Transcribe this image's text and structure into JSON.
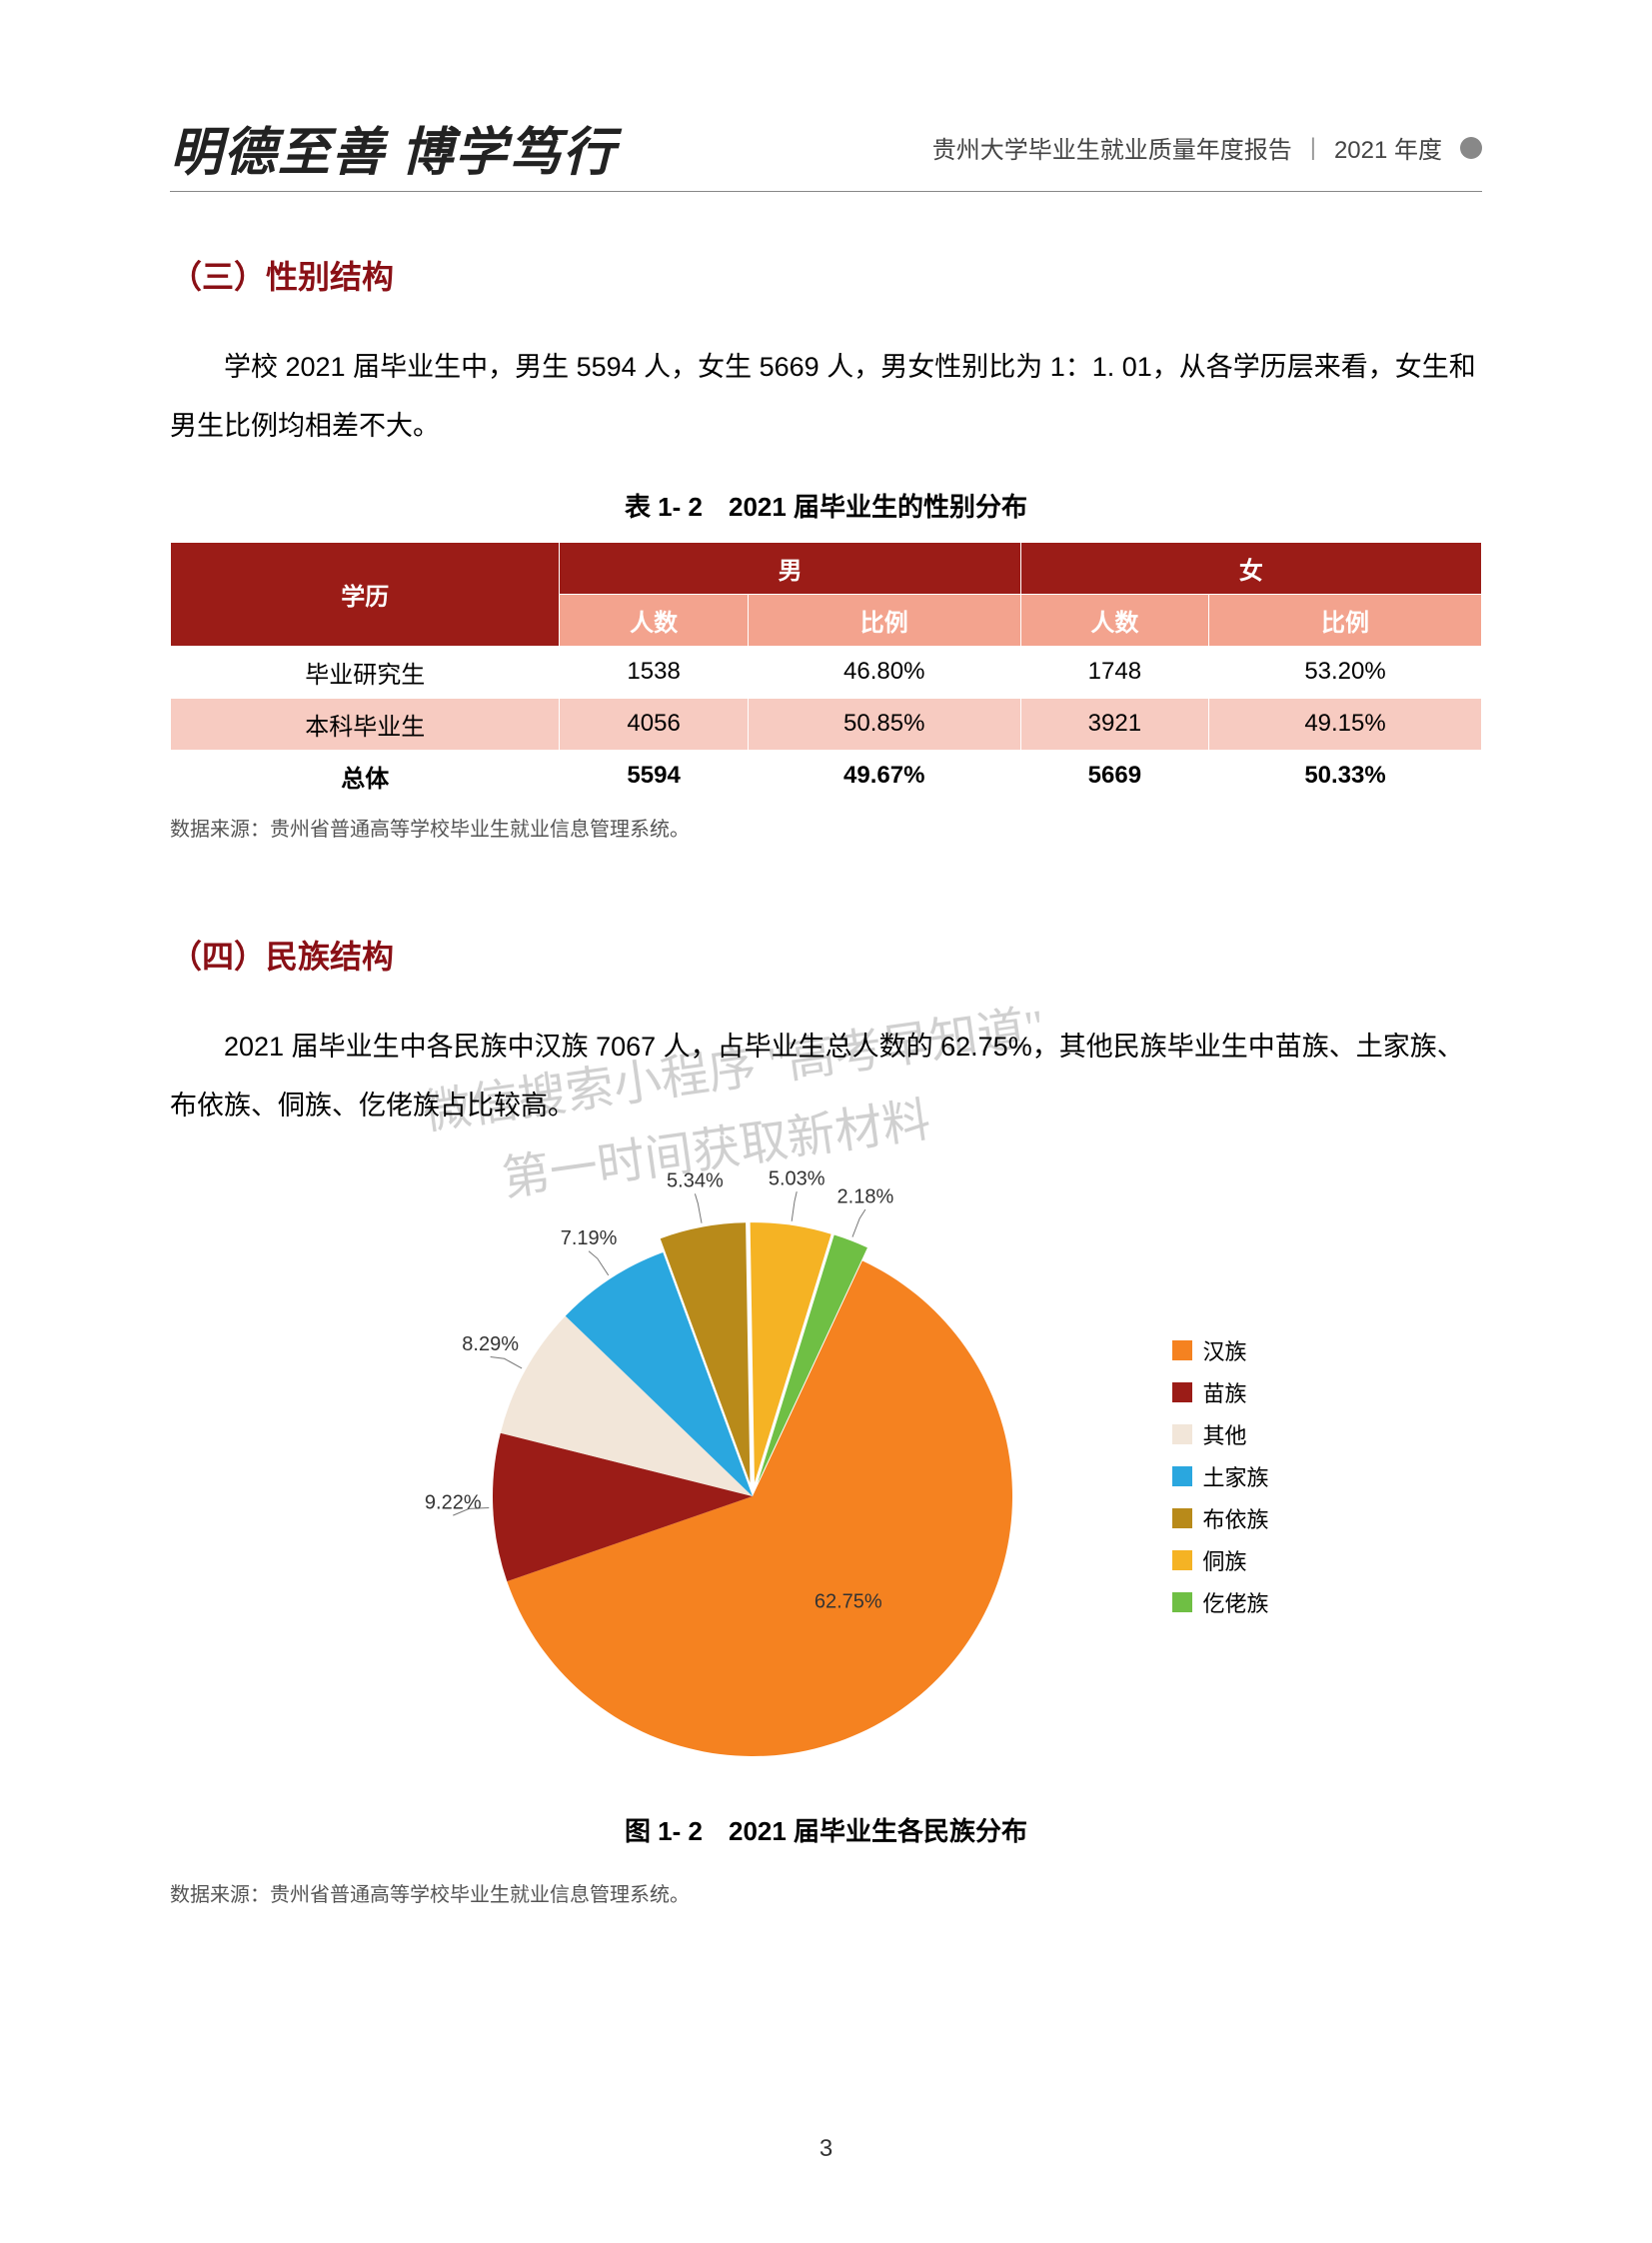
{
  "header": {
    "motto": "明德至善 博学笃行",
    "title": "贵州大学毕业生就业质量年度报告",
    "year": "2021 年度"
  },
  "section3": {
    "heading": "（三）性别结构",
    "paragraph": "学校 2021 届毕业生中，男生 5594 人，女生 5669 人，男女性别比为 1：1. 01，从各学历层来看，女生和男生比例均相差不大。",
    "table_title": "表 1- 2　2021 届毕业生的性别分布",
    "table": {
      "col_group_label": "学历",
      "groups": [
        "男",
        "女"
      ],
      "sub_headers": [
        "人数",
        "比例"
      ],
      "rows": [
        {
          "label": "毕业研究生",
          "male_count": "1538",
          "male_pct": "46.80%",
          "female_count": "1748",
          "female_pct": "53.20%",
          "row_class": "row-white"
        },
        {
          "label": "本科毕业生",
          "male_count": "4056",
          "male_pct": "50.85%",
          "female_count": "3921",
          "female_pct": "49.15%",
          "row_class": "row-pink"
        },
        {
          "label": "总体",
          "male_count": "5594",
          "male_pct": "49.67%",
          "female_count": "5669",
          "female_pct": "50.33%",
          "row_class": "row-total"
        }
      ],
      "header_bg_dark": "#9b1c17",
      "header_bg_light": "#f3a38e",
      "row_alt_bg": "#f7cbc1"
    },
    "source": "数据来源：贵州省普通高等学校毕业生就业信息管理系统。"
  },
  "section4": {
    "heading": "（四）民族结构",
    "paragraph": "2021 届毕业生中各民族中汉族 7067 人，占毕业生总人数的 62.75%，其他民族毕业生中苗族、土家族、布依族、侗族、仡佬族占比较高。",
    "pie": {
      "type": "pie",
      "title": "图 1- 2　2021 届毕业生各民族分布",
      "radius": 260,
      "center_label_color": "#ffffff",
      "background": "#ffffff",
      "label_fontsize": 20,
      "title_fontsize": 26,
      "slices": [
        {
          "label": "汉族",
          "value": 62.75,
          "color": "#f58220",
          "text": "62.75%",
          "pull": 0
        },
        {
          "label": "苗族",
          "value": 9.22,
          "color": "#9b1c17",
          "text": "9.22%",
          "pull": 0
        },
        {
          "label": "其他",
          "value": 8.29,
          "color": "#f2e6d9",
          "text": "8.29%",
          "pull": 0
        },
        {
          "label": "土家族",
          "value": 7.19,
          "color": "#2aa7df",
          "text": "7.19%",
          "pull": 0
        },
        {
          "label": "布依族",
          "value": 5.34,
          "color": "#b88a1a",
          "text": "5.34%",
          "pull": 14
        },
        {
          "label": "侗族",
          "value": 5.03,
          "color": "#f5b324",
          "text": "5.03%",
          "pull": 14
        },
        {
          "label": "仡佬族",
          "value": 2.18,
          "color": "#6fbf44",
          "text": "2.18%",
          "pull": 14
        }
      ],
      "start_angle_deg": 65,
      "direction": "clockwise"
    },
    "source": "数据来源：贵州省普通高等学校毕业生就业信息管理系统。"
  },
  "watermark": {
    "line1": "微信搜索小程序 \"高考早知道\"",
    "line2": "第一时间获取新材料"
  },
  "page_number": "3"
}
